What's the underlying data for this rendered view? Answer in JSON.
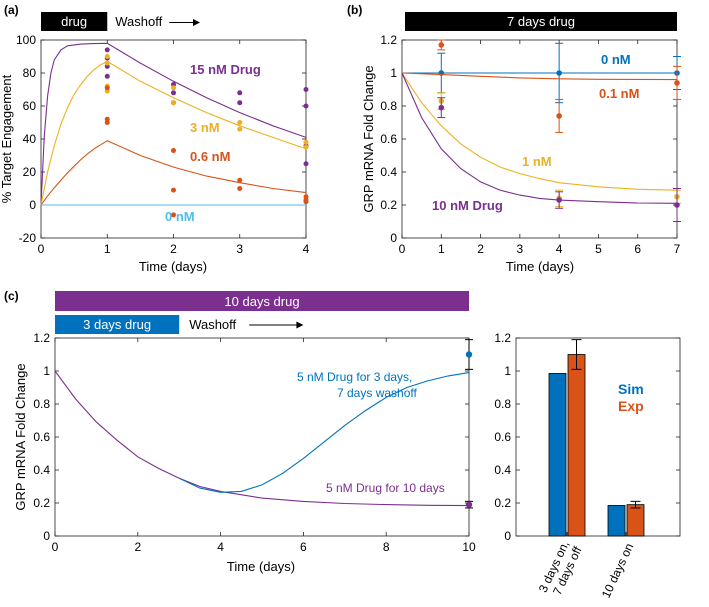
{
  "colors": {
    "purple": "#7B2F8E",
    "yellow": "#EDB120",
    "orange": "#D95319",
    "lightblue": "#4DBEEE",
    "blue": "#0072BD",
    "black": "#000000"
  },
  "chart_data": [
    {
      "panel": "(a)",
      "type": "line",
      "title": "",
      "xlabel": "Time (days)",
      "ylabel": "% Target Engagement",
      "xlim": [
        0,
        4
      ],
      "ylim": [
        -20,
        100
      ],
      "xticks": [
        0,
        1,
        2,
        3,
        4
      ],
      "yticks": [
        -20,
        0,
        20,
        40,
        60,
        80,
        100
      ],
      "bars": [
        {
          "label": "drug",
          "x0": 0,
          "x1": 1,
          "color": "#000000",
          "text_color": "#ffffff"
        },
        {
          "label": "Washoff",
          "x0": 1,
          "x1": 2.4,
          "color": "#ffffff",
          "text_color": "#000000",
          "arrow": true
        }
      ],
      "series": [
        {
          "name": "15 nM Drug",
          "color": "#7B2F8E",
          "curve": [
            [
              0,
              0
            ],
            [
              0.05,
              42
            ],
            [
              0.1,
              66
            ],
            [
              0.15,
              80
            ],
            [
              0.2,
              88
            ],
            [
              0.3,
              94
            ],
            [
              0.4,
              96.5
            ],
            [
              0.6,
              97.5
            ],
            [
              0.8,
              97.8
            ],
            [
              1,
              98
            ],
            [
              1.5,
              86
            ],
            [
              2,
              75
            ],
            [
              2.5,
              65
            ],
            [
              3,
              56
            ],
            [
              3.5,
              48
            ],
            [
              4,
              41
            ]
          ],
          "points": [
            [
              1,
              94
            ],
            [
              1,
              89
            ],
            [
              1,
              84
            ],
            [
              1,
              78
            ],
            [
              2,
              73
            ],
            [
              2,
              68
            ],
            [
              2,
              62
            ],
            [
              3,
              68
            ],
            [
              3,
              62
            ],
            [
              4,
              70
            ],
            [
              4,
              60
            ],
            [
              4,
              36
            ],
            [
              4,
              25
            ]
          ]
        },
        {
          "name": "3 nM",
          "color": "#EDB120",
          "curve": [
            [
              0,
              0
            ],
            [
              0.1,
              20
            ],
            [
              0.2,
              36
            ],
            [
              0.3,
              49
            ],
            [
              0.4,
              59
            ],
            [
              0.5,
              67
            ],
            [
              0.6,
              73
            ],
            [
              0.7,
              78
            ],
            [
              0.8,
              82
            ],
            [
              0.9,
              85
            ],
            [
              1,
              87
            ],
            [
              1.5,
              75
            ],
            [
              2,
              65
            ],
            [
              2.5,
              56
            ],
            [
              3,
              48
            ],
            [
              3.5,
              41
            ],
            [
              4,
              34
            ]
          ],
          "points": [
            [
              1,
              90
            ],
            [
              1,
              86
            ],
            [
              1,
              72
            ],
            [
              1,
              69
            ],
            [
              2,
              71
            ],
            [
              2,
              62
            ],
            [
              3,
              50
            ],
            [
              3,
              46
            ],
            [
              4,
              38
            ],
            [
              4,
              35
            ]
          ]
        },
        {
          "name": "0.6 nM",
          "color": "#D95319",
          "curve": [
            [
              0,
              0
            ],
            [
              0.1,
              5.5
            ],
            [
              0.2,
              10.5
            ],
            [
              0.3,
              15
            ],
            [
              0.4,
              19.5
            ],
            [
              0.5,
              23.5
            ],
            [
              0.6,
              27.5
            ],
            [
              0.7,
              31
            ],
            [
              0.8,
              34
            ],
            [
              0.9,
              36.5
            ],
            [
              1,
              39
            ],
            [
              1.5,
              30
            ],
            [
              2,
              23
            ],
            [
              2.5,
              17.5
            ],
            [
              3,
              13.5
            ],
            [
              3.5,
              10
            ],
            [
              4,
              7.5
            ]
          ],
          "points": [
            [
              1,
              71
            ],
            [
              1,
              52
            ],
            [
              1,
              50
            ],
            [
              2,
              33
            ],
            [
              2,
              9
            ],
            [
              2,
              -6
            ],
            [
              3,
              15
            ],
            [
              3,
              10
            ],
            [
              4,
              5
            ],
            [
              4,
              3
            ],
            [
              4,
              2
            ]
          ]
        },
        {
          "name": "0 nM",
          "color": "#4DBEEE",
          "curve": [
            [
              0,
              0
            ],
            [
              4,
              0
            ]
          ],
          "points": []
        }
      ],
      "annotations": [
        "15 nM Drug",
        "3 nM",
        "0.6 nM",
        "0 nM"
      ]
    },
    {
      "panel": "(b)",
      "type": "line",
      "title": "7 days drug",
      "xlabel": "Time (days)",
      "ylabel": "GRP mRNA Fold Change",
      "xlim": [
        0,
        7
      ],
      "ylim": [
        0,
        1.2
      ],
      "xticks": [
        0,
        1,
        2,
        3,
        4,
        5,
        6,
        7
      ],
      "yticks": [
        0,
        0.2,
        0.4,
        0.6,
        0.8,
        1,
        1.2
      ],
      "series": [
        {
          "name": "0 nM",
          "color": "#0072BD",
          "curve": [
            [
              0,
              1
            ],
            [
              7,
              1
            ]
          ],
          "points": [
            {
              "x": 1,
              "y": 1.0,
              "err": 0.12
            },
            {
              "x": 4,
              "y": 1.0,
              "err": 0.18
            },
            {
              "x": 7,
              "y": 1.0,
              "err": 0.1
            }
          ]
        },
        {
          "name": "0.1 nM",
          "color": "#D95319",
          "curve": [
            [
              0,
              1
            ],
            [
              1,
              0.99
            ],
            [
              2,
              0.98
            ],
            [
              3,
              0.97
            ],
            [
              4,
              0.965
            ],
            [
              5,
              0.962
            ],
            [
              6,
              0.961
            ],
            [
              7,
              0.96
            ]
          ],
          "points": [
            {
              "x": 1,
              "y": 1.17,
              "err": 0.03
            },
            {
              "x": 4,
              "y": 0.74,
              "err": 0.1
            },
            {
              "x": 7,
              "y": 0.94,
              "err": 0.1
            }
          ]
        },
        {
          "name": "1 nM",
          "color": "#EDB120",
          "curve": [
            [
              0,
              1
            ],
            [
              0.5,
              0.82
            ],
            [
              1,
              0.68
            ],
            [
              1.5,
              0.57
            ],
            [
              2,
              0.49
            ],
            [
              2.5,
              0.43
            ],
            [
              3,
              0.39
            ],
            [
              3.5,
              0.36
            ],
            [
              4,
              0.335
            ],
            [
              5,
              0.31
            ],
            [
              6,
              0.295
            ],
            [
              7,
              0.29
            ]
          ],
          "points": [
            {
              "x": 1,
              "y": 0.83,
              "err": 0.05
            },
            {
              "x": 4,
              "y": 0.24,
              "err": 0.05
            },
            {
              "x": 7,
              "y": 0.25,
              "err": 0.04
            }
          ]
        },
        {
          "name": "10 nM Drug",
          "color": "#7B2F8E",
          "curve": [
            [
              0,
              1
            ],
            [
              0.5,
              0.73
            ],
            [
              1,
              0.54
            ],
            [
              1.5,
              0.42
            ],
            [
              2,
              0.34
            ],
            [
              2.5,
              0.29
            ],
            [
              3,
              0.26
            ],
            [
              3.5,
              0.24
            ],
            [
              4,
              0.23
            ],
            [
              5,
              0.22
            ],
            [
              6,
              0.212
            ],
            [
              7,
              0.21
            ]
          ],
          "points": [
            {
              "x": 1,
              "y": 0.79,
              "err": 0.06
            },
            {
              "x": 4,
              "y": 0.23,
              "err": 0.05
            },
            {
              "x": 7,
              "y": 0.2,
              "err": 0.1
            }
          ]
        }
      ],
      "annotations": [
        "0 nM",
        "0.1 nM",
        "1 nM",
        "10 nM Drug"
      ]
    },
    {
      "panel": "(c)",
      "type": "line",
      "title": "",
      "xlabel": "Time (days)",
      "ylabel": "GRP mRNA Fold Change",
      "xlim": [
        0,
        10
      ],
      "ylim": [
        0,
        1.2
      ],
      "xticks": [
        0,
        2,
        4,
        6,
        8,
        10
      ],
      "yticks": [
        0,
        0.2,
        0.4,
        0.6,
        0.8,
        1,
        1.2
      ],
      "bars": [
        {
          "label": "10 days drug",
          "x0": 0,
          "x1": 10,
          "color": "#7B2F8E",
          "text_color": "#ffffff"
        },
        {
          "label": "3 days drug",
          "x0": 0,
          "x1": 3,
          "color": "#0072BD",
          "text_color": "#ffffff"
        },
        {
          "label": "Washoff",
          "x0": 3,
          "x1": 6,
          "color": "#ffffff",
          "text_color": "#000000",
          "arrow": true
        }
      ],
      "series": [
        {
          "name": "5 nM Drug for 10 days",
          "color": "#7B2F8E",
          "curve": [
            [
              0,
              1
            ],
            [
              0.5,
              0.83
            ],
            [
              1,
              0.69
            ],
            [
              1.5,
              0.58
            ],
            [
              2,
              0.48
            ],
            [
              2.5,
              0.41
            ],
            [
              3,
              0.35
            ],
            [
              3.5,
              0.3
            ],
            [
              4,
              0.27
            ],
            [
              5,
              0.23
            ],
            [
              6,
              0.21
            ],
            [
              7,
              0.197
            ],
            [
              8,
              0.19
            ],
            [
              9,
              0.186
            ],
            [
              10,
              0.184
            ]
          ],
          "points": [
            {
              "x": 10,
              "y": 0.19,
              "err": 0.02
            }
          ]
        },
        {
          "name": "5 nM Drug for 3 days, 7 days washoff",
          "color": "#0072BD",
          "curve": [
            [
              3,
              0.35
            ],
            [
              3.5,
              0.29
            ],
            [
              4,
              0.265
            ],
            [
              4.5,
              0.27
            ],
            [
              5,
              0.31
            ],
            [
              5.5,
              0.38
            ],
            [
              6,
              0.47
            ],
            [
              6.5,
              0.57
            ],
            [
              7,
              0.67
            ],
            [
              7.5,
              0.76
            ],
            [
              8,
              0.84
            ],
            [
              8.5,
              0.9
            ],
            [
              9,
              0.94
            ],
            [
              9.5,
              0.97
            ],
            [
              10,
              0.99
            ]
          ],
          "points": [
            {
              "x": 10,
              "y": 1.1,
              "err": 0.09
            }
          ]
        }
      ],
      "annotations": [
        "5 nM Drug for 3 days,",
        "7 days washoff",
        "5 nM Drug for 10 days"
      ]
    },
    {
      "panel": "(c) inset",
      "type": "bar",
      "categories": [
        "3 days on,\n7 days off",
        "10 days on"
      ],
      "ylim": [
        0,
        1.2
      ],
      "yticks": [
        0,
        0.2,
        0.4,
        0.6,
        0.8,
        1,
        1.2
      ],
      "series": [
        {
          "name": "Sim",
          "color": "#0072BD",
          "values": [
            0.985,
            0.185
          ],
          "errors": [
            0,
            0
          ]
        },
        {
          "name": "Exp",
          "color": "#D95319",
          "values": [
            1.1,
            0.19
          ],
          "errors": [
            0.09,
            0.02
          ]
        }
      ],
      "legend": "top-right"
    }
  ]
}
